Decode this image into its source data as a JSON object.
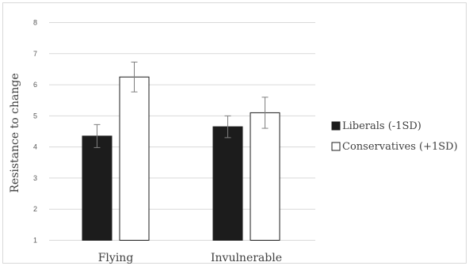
{
  "chart_data": {
    "type": "bar",
    "title": "",
    "xlabel": "",
    "ylabel": "Resistance to change",
    "ylim": [
      1,
      8
    ],
    "yticks": [
      1,
      2,
      3,
      4,
      5,
      6,
      7,
      8
    ],
    "grid": true,
    "legend_position": "right",
    "categories": [
      "Flying",
      "Invulnerable"
    ],
    "series": [
      {
        "name": "Liberals (-1SD)",
        "color": "#1c1c1c",
        "values": [
          4.35,
          4.65
        ],
        "error": [
          0.37,
          0.35
        ]
      },
      {
        "name": "Conservatives (+1SD)",
        "color": "#ffffff",
        "values": [
          6.25,
          5.1
        ],
        "error": [
          0.48,
          0.5
        ]
      }
    ]
  }
}
